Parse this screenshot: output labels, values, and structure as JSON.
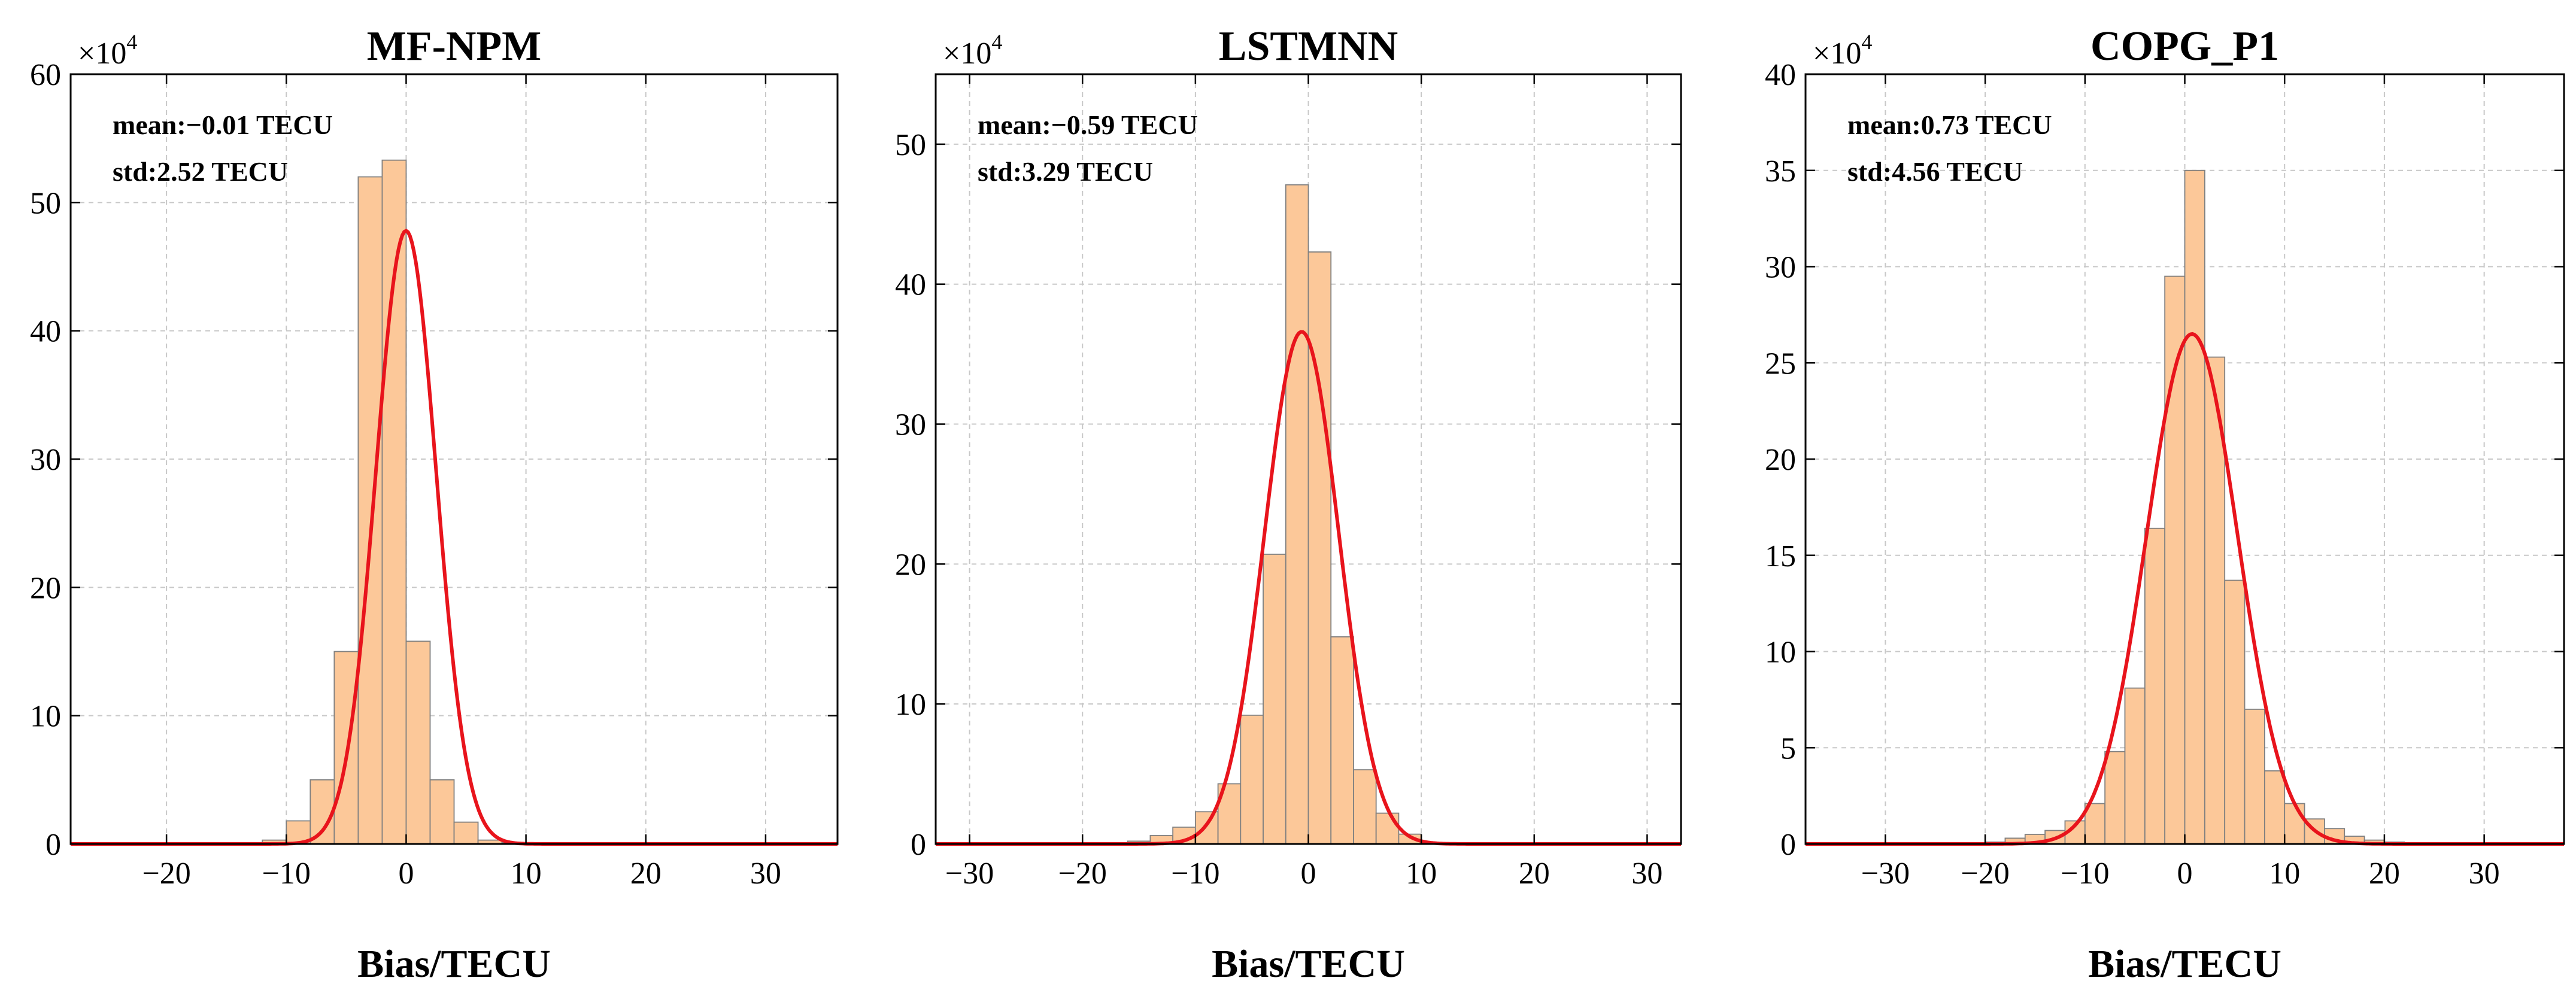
{
  "chart_data": [
    {
      "type": "histogram",
      "title": "MF-NPM",
      "xlabel": "Bias/TECU",
      "ylabel": "",
      "y_multiplier_label": "×10",
      "y_multiplier_exp": "4",
      "xlim": [
        -28,
        36
      ],
      "ylim": [
        0,
        60
      ],
      "xticks": [
        -20,
        -10,
        0,
        10,
        20,
        30
      ],
      "xtick_labels": [
        "−20",
        "−10",
        "0",
        "10",
        "20",
        "30"
      ],
      "yticks": [
        0,
        10,
        20,
        30,
        40,
        50,
        60
      ],
      "ytick_labels": [
        "0",
        "10",
        "20",
        "30",
        "40",
        "50",
        "60"
      ],
      "annotations": [
        "mean:−0.01 TECU",
        "std:2.52 TECU"
      ],
      "bin_edges": [
        -12,
        -10,
        -8,
        -6,
        -4,
        -2,
        0,
        2,
        4,
        6,
        8,
        10,
        12
      ],
      "values": [
        0.3,
        1.8,
        5.0,
        15.0,
        52.0,
        53.3,
        15.8,
        5.0,
        1.7,
        0.3,
        0.1,
        0.0
      ],
      "fit": {
        "mean": -0.01,
        "std": 2.52,
        "peak": 47.8
      }
    },
    {
      "type": "histogram",
      "title": "LSTMNN",
      "xlabel": "Bias/TECU",
      "ylabel": "",
      "y_multiplier_label": "×10",
      "y_multiplier_exp": "4",
      "xlim": [
        -33,
        33
      ],
      "ylim": [
        0,
        55
      ],
      "xticks": [
        -30,
        -20,
        -10,
        0,
        10,
        20,
        30
      ],
      "xtick_labels": [
        "−30",
        "−20",
        "−10",
        "0",
        "10",
        "20",
        "30"
      ],
      "yticks": [
        0,
        10,
        20,
        30,
        40,
        50
      ],
      "ytick_labels": [
        "0",
        "10",
        "20",
        "30",
        "40",
        "50"
      ],
      "annotations": [
        "mean:−0.59 TECU",
        "std:3.29 TECU"
      ],
      "bin_edges": [
        -16,
        -14,
        -12,
        -10,
        -8,
        -6,
        -4,
        -2,
        0,
        2,
        4,
        6,
        8,
        10
      ],
      "values": [
        0.2,
        0.6,
        1.2,
        2.3,
        4.3,
        9.2,
        20.7,
        47.1,
        42.3,
        14.8,
        5.3,
        2.2,
        0.7
      ],
      "fit": {
        "mean": -0.59,
        "std": 3.29,
        "peak": 36.6
      }
    },
    {
      "type": "histogram",
      "title": "COPG_P1",
      "xlabel": "Bias/TECU",
      "ylabel": "",
      "y_multiplier_label": "×10",
      "y_multiplier_exp": "4",
      "xlim": [
        -38,
        38
      ],
      "ylim": [
        0,
        40
      ],
      "xticks": [
        -30,
        -20,
        -10,
        0,
        10,
        20,
        30
      ],
      "xtick_labels": [
        "−30",
        "−20",
        "−10",
        "0",
        "10",
        "20",
        "30"
      ],
      "yticks": [
        0,
        5,
        10,
        15,
        20,
        25,
        30,
        35,
        40
      ],
      "ytick_labels": [
        "0",
        "5",
        "10",
        "15",
        "20",
        "25",
        "30",
        "35",
        "40"
      ],
      "annotations": [
        "mean:0.73 TECU",
        "std:4.56 TECU"
      ],
      "bin_edges": [
        -20,
        -18,
        -16,
        -14,
        -12,
        -10,
        -8,
        -6,
        -4,
        -2,
        0,
        2,
        4,
        6,
        8,
        10,
        12,
        14,
        16,
        18,
        20,
        22
      ],
      "values": [
        0.1,
        0.3,
        0.5,
        0.7,
        1.2,
        2.1,
        4.8,
        8.1,
        16.4,
        29.5,
        35.0,
        25.3,
        13.7,
        7.0,
        3.8,
        2.1,
        1.3,
        0.8,
        0.4,
        0.2,
        0.1
      ],
      "fit": {
        "mean": 0.73,
        "std": 4.56,
        "peak": 26.5
      }
    }
  ]
}
